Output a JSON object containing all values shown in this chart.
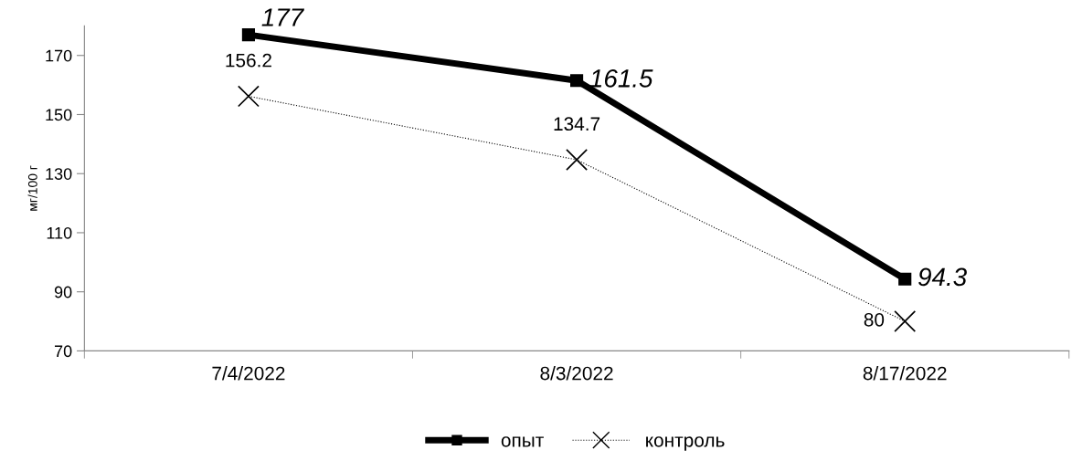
{
  "chart_data": {
    "type": "line",
    "ylabel": "мг/100 г",
    "categories": [
      "7/4/2022",
      "8/3/2022",
      "8/17/2022"
    ],
    "series": [
      {
        "name": "опыт",
        "color": "#000000",
        "values": [
          177,
          161.5,
          94.3
        ],
        "marker": "square",
        "line_style": "solid"
      },
      {
        "name": "контроль",
        "color": "#000000",
        "values": [
          156.2,
          134.7,
          80
        ],
        "marker": "cross",
        "line_style": "dotted"
      }
    ],
    "ylim": [
      70,
      180
    ],
    "yticks": [
      70,
      90,
      110,
      130,
      150,
      170
    ],
    "data_labels": true,
    "grid": false,
    "legend": "bottom"
  }
}
